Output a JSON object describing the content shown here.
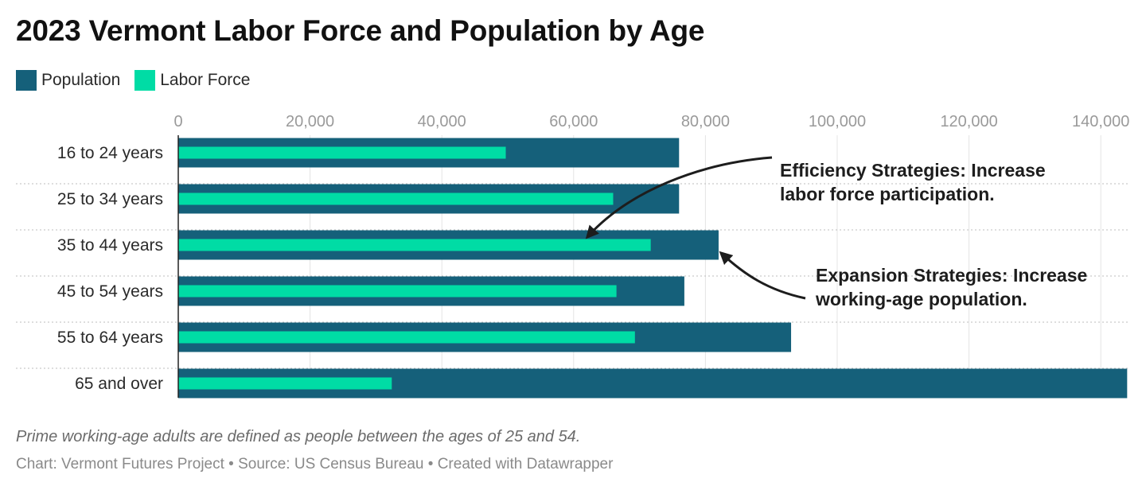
{
  "title": "2023 Vermont Labor Force and Population by Age",
  "legend": [
    {
      "label": "Population",
      "color": "#15607a"
    },
    {
      "label": "Labor Force",
      "color": "#00dca5"
    }
  ],
  "note": "Prime working-age adults are defined as people between the ages of 25 and 54.",
  "footer": "Chart: Vermont Futures Project • Source: US Census Bureau • Created with Datawrapper",
  "annotations": [
    {
      "lines": [
        "Efficiency Strategies: Increase",
        "labor force participation."
      ]
    },
    {
      "lines": [
        "Expansion Strategies: Increase",
        "working-age population."
      ]
    }
  ],
  "chart_data": {
    "type": "bar",
    "orientation": "horizontal",
    "title": "2023 Vermont Labor Force and Population by Age",
    "categories": [
      "16 to 24 years",
      "25 to 34 years",
      "35 to 44 years",
      "45 to 54 years",
      "55 to 64 years",
      "65 and over"
    ],
    "series": [
      {
        "name": "Population",
        "values": [
          76000,
          76000,
          82000,
          76800,
          93000,
          144000
        ],
        "color": "#15607a"
      },
      {
        "name": "Labor Force",
        "values": [
          49700,
          66000,
          71700,
          66500,
          69300,
          32400
        ],
        "color": "#00dca5"
      }
    ],
    "x_ticks": [
      0,
      20000,
      40000,
      60000,
      80000,
      100000,
      120000,
      140000
    ],
    "x_tick_labels": [
      "0",
      "20,000",
      "40,000",
      "60,000",
      "80,000",
      "100,000",
      "120,000",
      "140,000"
    ],
    "xlim": [
      0,
      144000
    ],
    "grid": true,
    "legend_position": "top-left"
  }
}
